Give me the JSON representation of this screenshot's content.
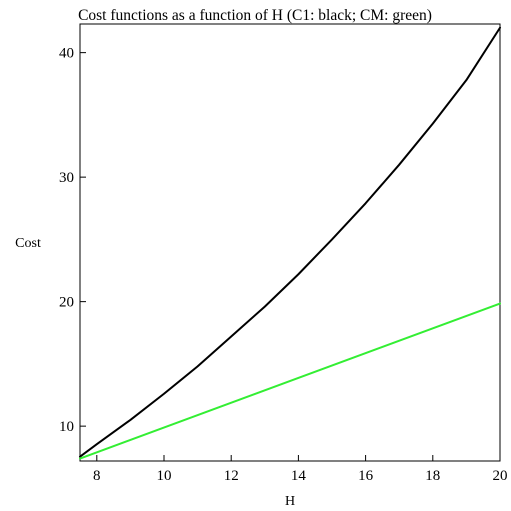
{
  "chart_data": {
    "type": "line",
    "title": "Cost functions as a function of H (C1: black; CM: green)",
    "xlabel": "H",
    "ylabel": "Cost",
    "xlim": [
      7.5,
      20
    ],
    "ylim": [
      7.2,
      42.3
    ],
    "xticks": [
      8,
      10,
      12,
      14,
      16,
      18,
      20
    ],
    "yticks": [
      10,
      20,
      30,
      40
    ],
    "grid": false,
    "series": [
      {
        "color": "#000000",
        "x": [
          7.5,
          8,
          9,
          10,
          11,
          12,
          13,
          14,
          15,
          16,
          17,
          18,
          19,
          20
        ],
        "y": [
          7.55,
          8.55,
          10.5,
          12.6,
          14.8,
          17.2,
          19.6,
          22.2,
          25.0,
          27.9,
          31.0,
          34.3,
          37.8,
          42.0
        ]
      },
      {
        "color": "#33ee33",
        "x": [
          7.5,
          20
        ],
        "y": [
          7.4,
          19.85
        ]
      }
    ]
  }
}
